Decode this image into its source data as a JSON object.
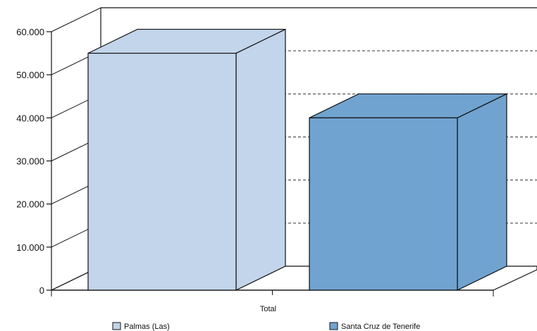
{
  "chart_data": {
    "type": "bar",
    "categories": [
      "Total"
    ],
    "series": [
      {
        "name": "Palmas (Las)",
        "values": [
          55000
        ],
        "color": "#c2d5ea",
        "side_color": "#c2d5ea",
        "top_color": "#c2d5ea"
      },
      {
        "name": "Santa Cruz de Tenerife",
        "values": [
          40000
        ],
        "color": "#70a3cf",
        "side_color": "#70a3cf",
        "top_color": "#70a3cf"
      }
    ],
    "y_ticks": [
      "0",
      "10.000",
      "20.000",
      "30.000",
      "40.000",
      "50.000",
      "60.000"
    ],
    "ylim": [
      0,
      60000
    ],
    "grid": true,
    "legend_position": "bottom",
    "three_d": true
  }
}
